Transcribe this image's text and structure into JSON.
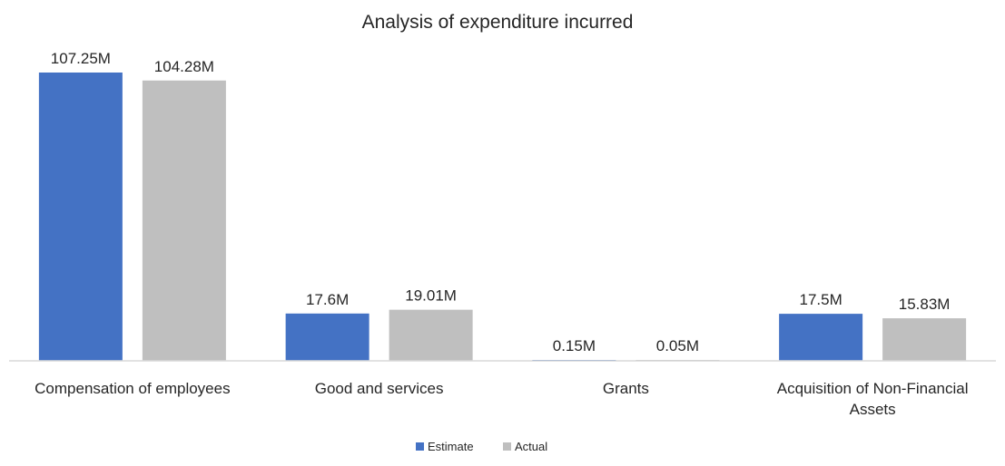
{
  "chart_data": {
    "type": "bar",
    "title": "Analysis of expenditure incurred",
    "xlabel": "",
    "ylabel": "",
    "categories": [
      [
        "Compensation of employees"
      ],
      [
        "Good and services"
      ],
      [
        "Grants"
      ],
      [
        "Acquisition of Non-Financial",
        "Assets"
      ]
    ],
    "series": [
      {
        "name": "Estimate",
        "color": "#4472C4",
        "values": [
          107.25,
          17.6,
          0.15,
          17.5
        ],
        "labels": [
          "107.25M",
          "17.6M",
          "0.15M",
          "17.5M"
        ]
      },
      {
        "name": "Actual",
        "color": "#BFBFBF",
        "values": [
          104.28,
          19.01,
          0.05,
          15.83
        ],
        "labels": [
          "104.28M",
          "19.01M",
          "0.05M",
          "15.83M"
        ]
      }
    ],
    "ylim": [
      0,
      107.25
    ],
    "grid": false,
    "legend_position": "bottom"
  }
}
